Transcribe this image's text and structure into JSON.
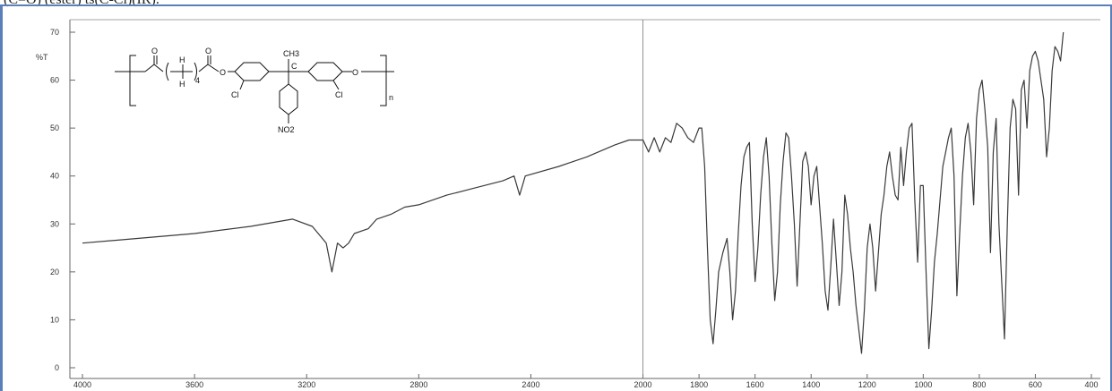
{
  "caption": "(C=O) (ester) ts(C-Cl)(IR).",
  "colors": {
    "frame": "#5b7fb8",
    "trace": "#3a3a3a",
    "grid": "#9a9a9a"
  },
  "structure": {
    "ch3": "CH3",
    "h_top": "H",
    "h_bottom": "H",
    "subscript_4": "4",
    "o_left": "O",
    "o_right": "O",
    "o_ring": "O",
    "c_center": "C",
    "cl_left": "Cl",
    "cl_right": "Cl",
    "no2": "NO2",
    "n": "n"
  },
  "chart_data": {
    "type": "line",
    "title": "",
    "ylabel": "%T",
    "xlabel": "",
    "xlim": [
      4000,
      400
    ],
    "ylim": [
      0,
      70
    ],
    "x_ticks": [
      4000,
      3600,
      3200,
      2800,
      2400,
      2000,
      1800,
      1600,
      1400,
      1200,
      1000,
      800,
      600,
      400
    ],
    "x_tick_labels": [
      "4000",
      "3600",
      "3200",
      "2800",
      "2400",
      "2000",
      "1800",
      "1600",
      "1400",
      "1200",
      "1000",
      "800",
      "600",
      "400"
    ],
    "y_ticks": [
      0,
      10,
      20,
      30,
      40,
      50,
      60,
      70
    ],
    "y_tick_labels": [
      "0",
      "10",
      "20",
      "30",
      "40",
      "50",
      "60",
      "70"
    ],
    "reference_line_x": 2000,
    "grid": false,
    "series": [
      {
        "points": [
          [
            4000,
            26
          ],
          [
            3800,
            27
          ],
          [
            3600,
            28
          ],
          [
            3400,
            29.5
          ],
          [
            3250,
            31
          ],
          [
            3180,
            29.5
          ],
          [
            3130,
            26
          ],
          [
            3110,
            20
          ],
          [
            3090,
            26
          ],
          [
            3070,
            25
          ],
          [
            3050,
            26
          ],
          [
            3030,
            28
          ],
          [
            2980,
            29
          ],
          [
            2950,
            31
          ],
          [
            2900,
            32
          ],
          [
            2850,
            33.5
          ],
          [
            2800,
            34
          ],
          [
            2700,
            36
          ],
          [
            2600,
            37.5
          ],
          [
            2500,
            39
          ],
          [
            2460,
            40
          ],
          [
            2440,
            36
          ],
          [
            2420,
            40
          ],
          [
            2300,
            42
          ],
          [
            2200,
            44
          ],
          [
            2100,
            46.5
          ],
          [
            2050,
            47.5
          ],
          [
            2000,
            47.5
          ],
          [
            1980,
            45
          ],
          [
            1960,
            48
          ],
          [
            1940,
            45
          ],
          [
            1920,
            48
          ],
          [
            1900,
            47
          ],
          [
            1880,
            51
          ],
          [
            1860,
            50
          ],
          [
            1840,
            48
          ],
          [
            1820,
            47
          ],
          [
            1800,
            50
          ],
          [
            1790,
            50
          ],
          [
            1780,
            42
          ],
          [
            1770,
            25
          ],
          [
            1760,
            10
          ],
          [
            1750,
            5
          ],
          [
            1740,
            12
          ],
          [
            1730,
            20
          ],
          [
            1715,
            24
          ],
          [
            1700,
            27
          ],
          [
            1690,
            20
          ],
          [
            1680,
            10
          ],
          [
            1670,
            16
          ],
          [
            1660,
            28
          ],
          [
            1650,
            38
          ],
          [
            1640,
            44
          ],
          [
            1630,
            46
          ],
          [
            1620,
            47
          ],
          [
            1610,
            30
          ],
          [
            1600,
            18
          ],
          [
            1590,
            25
          ],
          [
            1580,
            36
          ],
          [
            1570,
            44
          ],
          [
            1560,
            48
          ],
          [
            1550,
            40
          ],
          [
            1540,
            26
          ],
          [
            1530,
            14
          ],
          [
            1520,
            20
          ],
          [
            1510,
            34
          ],
          [
            1500,
            43
          ],
          [
            1490,
            49
          ],
          [
            1480,
            48
          ],
          [
            1470,
            40
          ],
          [
            1460,
            30
          ],
          [
            1450,
            17
          ],
          [
            1440,
            30
          ],
          [
            1430,
            43
          ],
          [
            1420,
            45
          ],
          [
            1410,
            42
          ],
          [
            1400,
            34
          ],
          [
            1390,
            40
          ],
          [
            1380,
            42
          ],
          [
            1370,
            34
          ],
          [
            1360,
            26
          ],
          [
            1350,
            16
          ],
          [
            1340,
            12
          ],
          [
            1330,
            21
          ],
          [
            1320,
            31
          ],
          [
            1310,
            22
          ],
          [
            1300,
            13
          ],
          [
            1290,
            20
          ],
          [
            1280,
            36
          ],
          [
            1270,
            32
          ],
          [
            1260,
            25
          ],
          [
            1250,
            20
          ],
          [
            1240,
            13
          ],
          [
            1230,
            8
          ],
          [
            1220,
            3
          ],
          [
            1210,
            12
          ],
          [
            1200,
            25
          ],
          [
            1190,
            30
          ],
          [
            1180,
            25
          ],
          [
            1170,
            16
          ],
          [
            1160,
            24
          ],
          [
            1150,
            32
          ],
          [
            1140,
            36
          ],
          [
            1130,
            42
          ],
          [
            1120,
            45
          ],
          [
            1110,
            40
          ],
          [
            1100,
            36
          ],
          [
            1090,
            35
          ],
          [
            1080,
            46
          ],
          [
            1070,
            38
          ],
          [
            1060,
            45
          ],
          [
            1050,
            50
          ],
          [
            1040,
            51
          ],
          [
            1030,
            35
          ],
          [
            1020,
            22
          ],
          [
            1010,
            38
          ],
          [
            1000,
            38
          ],
          [
            990,
            20
          ],
          [
            980,
            4
          ],
          [
            970,
            12
          ],
          [
            960,
            22
          ],
          [
            950,
            28
          ],
          [
            940,
            35
          ],
          [
            930,
            42
          ],
          [
            920,
            45
          ],
          [
            910,
            48
          ],
          [
            900,
            50
          ],
          [
            890,
            40
          ],
          [
            880,
            15
          ],
          [
            870,
            28
          ],
          [
            860,
            40
          ],
          [
            850,
            48
          ],
          [
            840,
            51
          ],
          [
            830,
            45
          ],
          [
            820,
            34
          ],
          [
            810,
            52
          ],
          [
            800,
            58
          ],
          [
            790,
            60
          ],
          [
            780,
            54
          ],
          [
            770,
            46
          ],
          [
            760,
            24
          ],
          [
            750,
            45
          ],
          [
            740,
            52
          ],
          [
            730,
            30
          ],
          [
            720,
            18
          ],
          [
            710,
            6
          ],
          [
            700,
            30
          ],
          [
            690,
            50
          ],
          [
            680,
            56
          ],
          [
            670,
            54
          ],
          [
            660,
            36
          ],
          [
            650,
            58
          ],
          [
            640,
            60
          ],
          [
            630,
            50
          ],
          [
            620,
            62
          ],
          [
            610,
            65
          ],
          [
            600,
            66
          ],
          [
            590,
            64
          ],
          [
            580,
            60
          ],
          [
            570,
            56
          ],
          [
            560,
            44
          ],
          [
            550,
            50
          ],
          [
            540,
            62
          ],
          [
            530,
            67
          ],
          [
            520,
            66
          ],
          [
            510,
            64
          ],
          [
            500,
            70
          ]
        ]
      }
    ]
  }
}
